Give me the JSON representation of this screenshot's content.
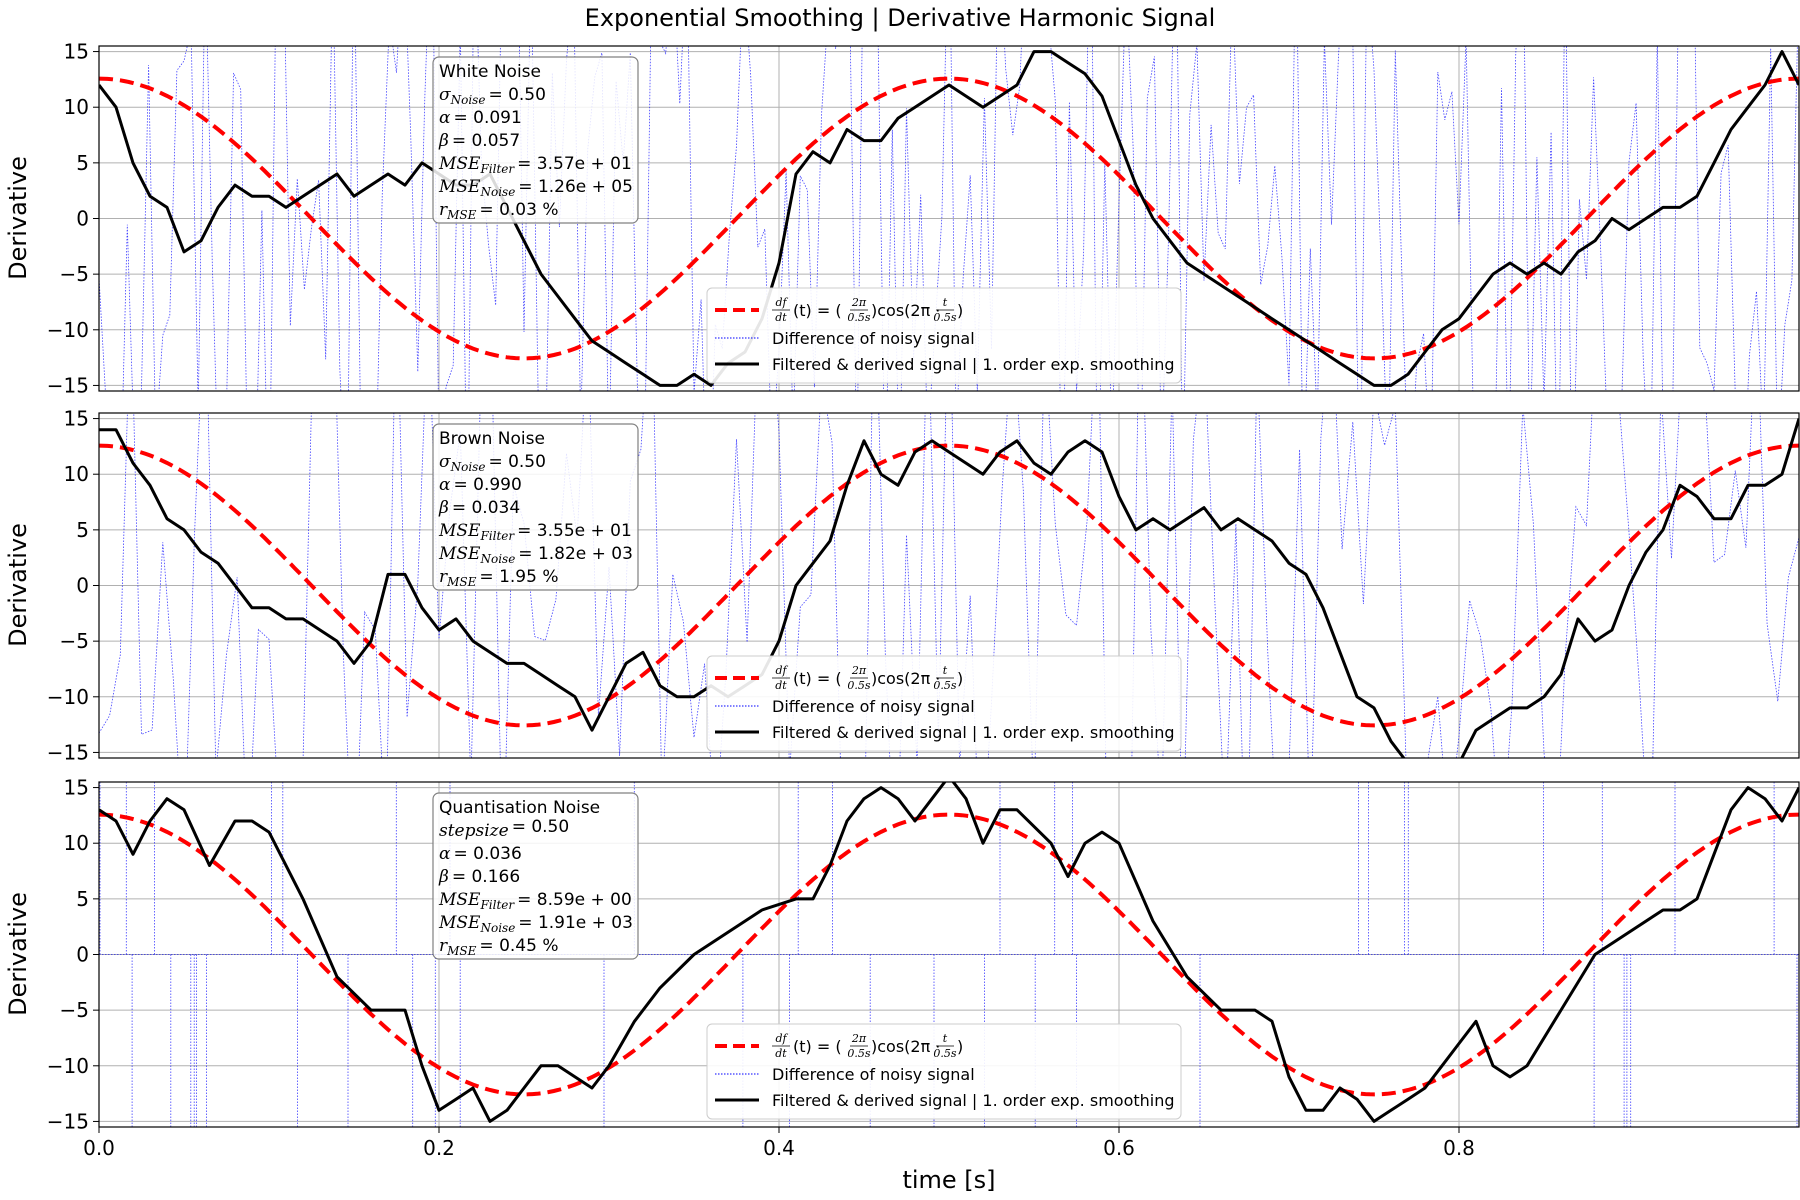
{
  "figure": {
    "title": "Exponential Smoothing | Derivative Harmonic Signal",
    "xlabel": "time [s]"
  },
  "legend": {
    "analytic_label": "(t) = (",
    "analytic_parts": [
      "df",
      "dt",
      "2π",
      "0.5s",
      "cos(2π ·",
      "t",
      "0.5s",
      ")",
      ")"
    ],
    "noisy_label": "Difference of noisy signal",
    "filtered_label": "Filtered & derived signal | 1. order exp. smoothing"
  },
  "colors": {
    "analytic": "#ff0000",
    "noisy": "#0000ff",
    "filtered": "#000000",
    "grid": "#b0b0b0"
  },
  "chart_data": [
    {
      "type": "line",
      "ylabel": "Derivative",
      "xlim": [
        0,
        1
      ],
      "ylim": [
        -15.5,
        15.5
      ],
      "xticks": [
        0.0,
        0.2,
        0.4,
        0.6,
        0.8
      ],
      "xtick_labels": [
        "0.0",
        "0.2",
        "0.4",
        "0.6",
        "0.8"
      ],
      "yticks": [
        15,
        10,
        5,
        0,
        -5,
        -10,
        -15
      ],
      "ytick_labels": [
        "15",
        "10",
        "5",
        "0",
        "−5",
        "−10",
        "−15"
      ],
      "info_box": {
        "noise": "White Noise",
        "param_name": "σ",
        "param_sub": "Noise",
        "param_value": "= 0.50",
        "alpha": "= 0.091",
        "beta": "= 0.057",
        "mse_filter": "= 3.57e + 01",
        "mse_noise": "= 1.26e + 05",
        "r_mse": "= 0.03 %"
      },
      "analytic": {
        "amplitude": 12.57,
        "period": 0.5
      },
      "filtered_x": [
        0,
        0.01,
        0.02,
        0.03,
        0.04,
        0.05,
        0.06,
        0.07,
        0.08,
        0.09,
        0.1,
        0.11,
        0.12,
        0.13,
        0.14,
        0.15,
        0.16,
        0.17,
        0.18,
        0.19,
        0.2,
        0.21,
        0.22,
        0.23,
        0.24,
        0.25,
        0.26,
        0.27,
        0.28,
        0.29,
        0.3,
        0.31,
        0.32,
        0.33,
        0.34,
        0.35,
        0.36,
        0.37,
        0.38,
        0.39,
        0.4,
        0.41,
        0.42,
        0.43,
        0.44,
        0.45,
        0.46,
        0.47,
        0.48,
        0.49,
        0.5,
        0.51,
        0.52,
        0.53,
        0.54,
        0.55,
        0.56,
        0.57,
        0.58,
        0.59,
        0.6,
        0.61,
        0.62,
        0.63,
        0.64,
        0.65,
        0.66,
        0.67,
        0.68,
        0.69,
        0.7,
        0.71,
        0.72,
        0.73,
        0.74,
        0.75,
        0.76,
        0.77,
        0.78,
        0.79,
        0.8,
        0.81,
        0.82,
        0.83,
        0.84,
        0.85,
        0.86,
        0.87,
        0.88,
        0.89,
        0.9,
        0.91,
        0.92,
        0.93,
        0.94,
        0.95,
        0.96,
        0.97,
        0.98,
        0.99,
        1.0
      ],
      "filtered_y": [
        12,
        10,
        5,
        2,
        1,
        -3,
        -2,
        1,
        3,
        2,
        2,
        1,
        2,
        3,
        4,
        2,
        3,
        4,
        3,
        5,
        4,
        3,
        3,
        4,
        1,
        -2,
        -5,
        -7,
        -9,
        -11,
        -12,
        -13,
        -14,
        -15,
        -15,
        -14,
        -15,
        -13,
        -12,
        -9,
        -4,
        4,
        6,
        5,
        8,
        7,
        7,
        9,
        10,
        11,
        12,
        11,
        10,
        11,
        12,
        15,
        15,
        14,
        13,
        11,
        7,
        3,
        0,
        -2,
        -4,
        -5,
        -6,
        -7,
        -8,
        -9,
        -10,
        -11,
        -12,
        -13,
        -14,
        -15,
        -15,
        -14,
        -12,
        -10,
        -9,
        -7,
        -5,
        -4,
        -5,
        -4,
        -5,
        -3,
        -2,
        0,
        -1,
        0,
        1,
        1,
        2,
        5,
        8,
        10,
        12,
        15,
        12
      ],
      "noise_amp": 30,
      "noise_count": 240,
      "noise_sparse": false
    },
    {
      "type": "line",
      "ylabel": "Derivative",
      "xlim": [
        0,
        1
      ],
      "ylim": [
        -15.5,
        15.5
      ],
      "xticks": [
        0.0,
        0.2,
        0.4,
        0.6,
        0.8
      ],
      "yticks": [
        15,
        10,
        5,
        0,
        -5,
        -10,
        -15
      ],
      "ytick_labels": [
        "15",
        "10",
        "5",
        "0",
        "−5",
        "−10",
        "−15"
      ],
      "info_box": {
        "noise": "Brown Noise",
        "param_name": "σ",
        "param_sub": "Noise",
        "param_value": "= 0.50",
        "alpha": "= 0.990",
        "beta": "= 0.034",
        "mse_filter": "= 3.55e + 01",
        "mse_noise": "= 1.82e + 03",
        "r_mse": "= 1.95 %"
      },
      "analytic": {
        "amplitude": 12.57,
        "period": 0.5
      },
      "filtered_x": [
        0,
        0.01,
        0.02,
        0.03,
        0.04,
        0.05,
        0.06,
        0.07,
        0.08,
        0.09,
        0.1,
        0.11,
        0.12,
        0.13,
        0.14,
        0.15,
        0.16,
        0.17,
        0.18,
        0.19,
        0.2,
        0.21,
        0.22,
        0.23,
        0.24,
        0.25,
        0.26,
        0.27,
        0.28,
        0.29,
        0.3,
        0.31,
        0.32,
        0.33,
        0.34,
        0.35,
        0.36,
        0.37,
        0.38,
        0.39,
        0.4,
        0.41,
        0.42,
        0.43,
        0.44,
        0.45,
        0.46,
        0.47,
        0.48,
        0.49,
        0.5,
        0.51,
        0.52,
        0.53,
        0.54,
        0.55,
        0.56,
        0.57,
        0.58,
        0.59,
        0.6,
        0.61,
        0.62,
        0.63,
        0.64,
        0.65,
        0.66,
        0.67,
        0.68,
        0.69,
        0.7,
        0.71,
        0.72,
        0.73,
        0.74,
        0.75,
        0.76,
        0.77,
        0.78,
        0.79,
        0.8,
        0.81,
        0.82,
        0.83,
        0.84,
        0.85,
        0.86,
        0.87,
        0.88,
        0.89,
        0.9,
        0.91,
        0.92,
        0.93,
        0.94,
        0.95,
        0.96,
        0.97,
        0.98,
        0.99,
        1.0
      ],
      "filtered_y": [
        14,
        14,
        11,
        9,
        6,
        5,
        3,
        2,
        0,
        -2,
        -2,
        -3,
        -3,
        -4,
        -5,
        -7,
        -5,
        1,
        1,
        -2,
        -4,
        -3,
        -5,
        -6,
        -7,
        -7,
        -8,
        -9,
        -10,
        -13,
        -10,
        -7,
        -6,
        -9,
        -10,
        -10,
        -9,
        -10,
        -9,
        -8,
        -5,
        0,
        2,
        4,
        9,
        13,
        10,
        9,
        12,
        13,
        12,
        11,
        10,
        12,
        13,
        11,
        10,
        12,
        13,
        12,
        8,
        5,
        6,
        5,
        6,
        7,
        5,
        6,
        5,
        4,
        2,
        1,
        -2,
        -6,
        -10,
        -11,
        -14,
        -16,
        -18,
        -18,
        -16,
        -13,
        -12,
        -11,
        -11,
        -10,
        -8,
        -3,
        -5,
        -4,
        0,
        3,
        5,
        9,
        8,
        6,
        6,
        9,
        9,
        10,
        15
      ],
      "noise_amp": 30,
      "noise_count": 160,
      "noise_sparse": false
    },
    {
      "type": "line",
      "ylabel": "Derivative",
      "xlim": [
        0,
        1
      ],
      "ylim": [
        -15.5,
        15.5
      ],
      "xticks": [
        0.0,
        0.2,
        0.4,
        0.6,
        0.8
      ],
      "xtick_labels": [
        "0.0",
        "0.2",
        "0.4",
        "0.6",
        "0.8"
      ],
      "yticks": [
        15,
        10,
        5,
        0,
        -5,
        -10,
        -15
      ],
      "ytick_labels": [
        "15",
        "10",
        "5",
        "0",
        "−5",
        "−10",
        "−15"
      ],
      "info_box": {
        "noise": "Quantisation Noise",
        "param_name": "stepsize",
        "param_sub": "",
        "param_value": "= 0.50",
        "alpha": "= 0.036",
        "beta": "= 0.166",
        "mse_filter": "= 8.59e + 00",
        "mse_noise": "= 1.91e + 03",
        "r_mse": "= 0.45 %"
      },
      "analytic": {
        "amplitude": 12.57,
        "period": 0.5
      },
      "filtered_x": [
        0,
        0.01,
        0.02,
        0.03,
        0.04,
        0.05,
        0.065,
        0.08,
        0.09,
        0.1,
        0.12,
        0.14,
        0.16,
        0.17,
        0.18,
        0.19,
        0.2,
        0.21,
        0.22,
        0.23,
        0.24,
        0.25,
        0.26,
        0.27,
        0.28,
        0.29,
        0.3,
        0.315,
        0.33,
        0.35,
        0.37,
        0.39,
        0.41,
        0.42,
        0.43,
        0.44,
        0.45,
        0.46,
        0.47,
        0.48,
        0.49,
        0.5,
        0.51,
        0.52,
        0.53,
        0.54,
        0.56,
        0.57,
        0.58,
        0.59,
        0.6,
        0.62,
        0.64,
        0.66,
        0.68,
        0.69,
        0.7,
        0.71,
        0.72,
        0.73,
        0.74,
        0.75,
        0.76,
        0.77,
        0.78,
        0.79,
        0.8,
        0.81,
        0.82,
        0.83,
        0.84,
        0.86,
        0.88,
        0.9,
        0.92,
        0.93,
        0.94,
        0.95,
        0.96,
        0.97,
        0.98,
        0.99,
        1.0
      ],
      "filtered_y": [
        13,
        12,
        9,
        12,
        14,
        13,
        8,
        12,
        12,
        11,
        5,
        -2,
        -5,
        -5,
        -5,
        -10,
        -14,
        -13,
        -12,
        -15,
        -14,
        -12,
        -10,
        -10,
        -11,
        -12,
        -10,
        -6,
        -3,
        0,
        2,
        4,
        5,
        5,
        8,
        12,
        14,
        15,
        14,
        12,
        14,
        16,
        14,
        10,
        13,
        13,
        10,
        7,
        10,
        11,
        10,
        3,
        -2,
        -5,
        -5,
        -6,
        -11,
        -14,
        -14,
        -12,
        -13,
        -15,
        -14,
        -13,
        -12,
        -10,
        -8,
        -6,
        -10,
        -11,
        -10,
        -5,
        0,
        2,
        4,
        4,
        5,
        9,
        13,
        15,
        14,
        12,
        15
      ],
      "noise_amp": 16,
      "noise_count": 46,
      "noise_sparse": true
    }
  ]
}
